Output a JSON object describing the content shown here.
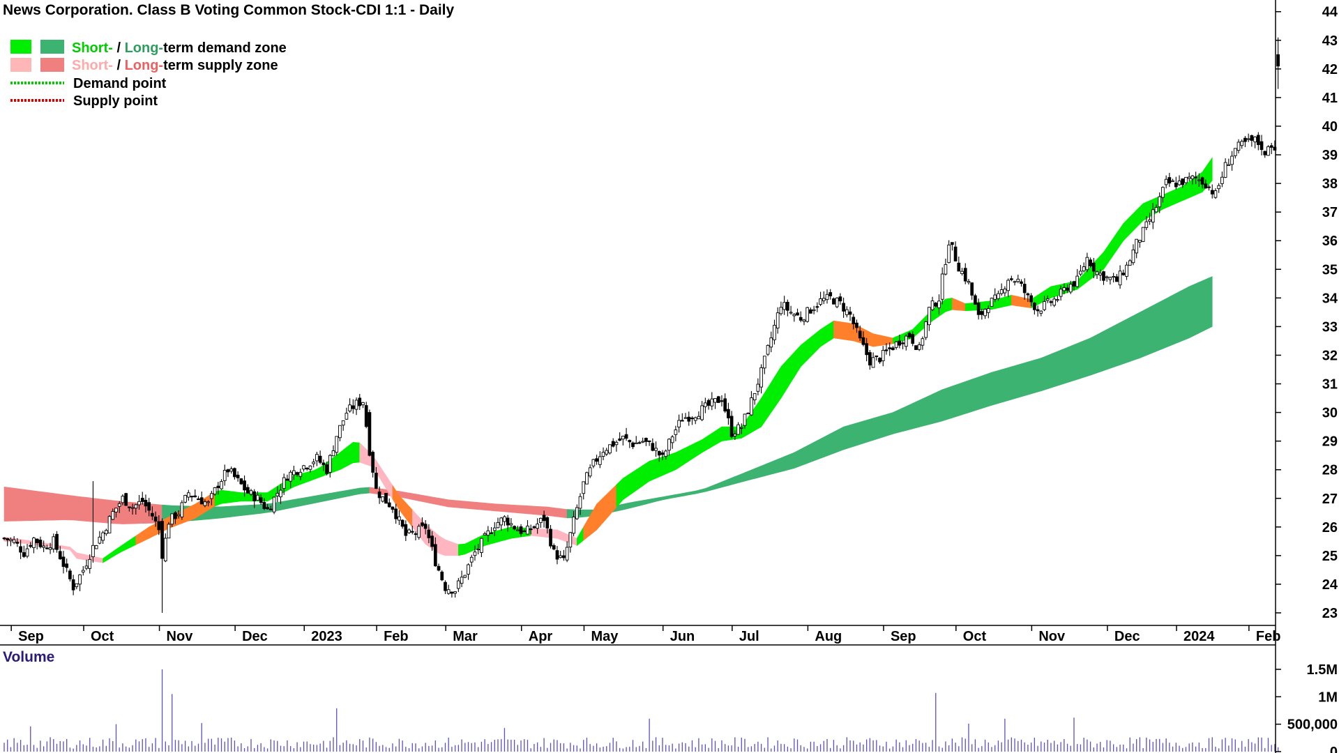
{
  "chart_data": {
    "type": "candlestick",
    "title": "News Corporation. Class B Voting Common Stock-CDI 1:1 - Daily",
    "legend": {
      "placement": "top-left",
      "items": [
        {
          "prefix": "Short-",
          "middle": " / ",
          "main": "Long-",
          "suffix": "term demand zone",
          "colors": [
            "#00ee00",
            "#3cb371"
          ]
        },
        {
          "prefix": "Short-",
          "middle": " / ",
          "main": "Long-",
          "suffix": "term supply zone",
          "colors": [
            "#ffb6b6",
            "#f08080"
          ]
        },
        {
          "label": "Demand point",
          "color": "#00cc00",
          "style": "dotted"
        },
        {
          "label": "Supply point",
          "color": "#dd0000",
          "style": "dotted"
        }
      ]
    },
    "price_axis": {
      "min": 23,
      "max": 44,
      "ticks": [
        23,
        24,
        25,
        26,
        27,
        28,
        29,
        30,
        31,
        32,
        33,
        34,
        35,
        36,
        37,
        38,
        39,
        40,
        41,
        42,
        43,
        44
      ],
      "side": "right"
    },
    "x_axis": {
      "labels": [
        "Sep",
        "Oct",
        "Nov",
        "Dec",
        "2023",
        "Feb",
        "Mar",
        "Apr",
        "May",
        "Jun",
        "Jul",
        "Aug",
        "Sep",
        "Oct",
        "Nov",
        "Dec",
        "2024",
        "Feb"
      ],
      "num_bars": 365,
      "label_bars": [
        3,
        25,
        48,
        71,
        92,
        114,
        135,
        158,
        177,
        201,
        222,
        245,
        268,
        290,
        313,
        336,
        357,
        379
      ]
    },
    "price_keys": [
      [
        0,
        25.6
      ],
      [
        3,
        25.5
      ],
      [
        6,
        25.1
      ],
      [
        9,
        25.6
      ],
      [
        12,
        25.3
      ],
      [
        15,
        25.5
      ],
      [
        18,
        24.7
      ],
      [
        21,
        23.9
      ],
      [
        24,
        24.5
      ],
      [
        27,
        25.3
      ],
      [
        30,
        25.8
      ],
      [
        33,
        26.5
      ],
      [
        36,
        27.0
      ],
      [
        39,
        26.7
      ],
      [
        42,
        26.9
      ],
      [
        45,
        26.4
      ],
      [
        47,
        25.9
      ],
      [
        48,
        24.9
      ],
      [
        50,
        26.2
      ],
      [
        53,
        26.5
      ],
      [
        56,
        27.2
      ],
      [
        59,
        27.0
      ],
      [
        62,
        26.8
      ],
      [
        65,
        27.5
      ],
      [
        68,
        28.0
      ],
      [
        71,
        27.6
      ],
      [
        74,
        27.2
      ],
      [
        77,
        27.0
      ],
      [
        80,
        26.6
      ],
      [
        83,
        27.2
      ],
      [
        86,
        27.8
      ],
      [
        89,
        28.0
      ],
      [
        92,
        28.2
      ],
      [
        95,
        28.4
      ],
      [
        98,
        28.0
      ],
      [
        101,
        29.2
      ],
      [
        104,
        30.0
      ],
      [
        107,
        30.3
      ],
      [
        109,
        30.4
      ],
      [
        111,
        28.7
      ],
      [
        113,
        27.3
      ],
      [
        115,
        27.0
      ],
      [
        118,
        26.7
      ],
      [
        120,
        26.2
      ],
      [
        122,
        25.7
      ],
      [
        125,
        25.8
      ],
      [
        128,
        26.0
      ],
      [
        131,
        24.8
      ],
      [
        134,
        23.9
      ],
      [
        137,
        23.8
      ],
      [
        140,
        24.4
      ],
      [
        143,
        25.1
      ],
      [
        146,
        25.6
      ],
      [
        149,
        26.1
      ],
      [
        152,
        26.3
      ],
      [
        155,
        26.0
      ],
      [
        158,
        25.8
      ],
      [
        161,
        26.0
      ],
      [
        164,
        26.3
      ],
      [
        167,
        25.1
      ],
      [
        170,
        24.8
      ],
      [
        173,
        26.2
      ],
      [
        176,
        27.5
      ],
      [
        179,
        28.2
      ],
      [
        182,
        28.7
      ],
      [
        185,
        28.9
      ],
      [
        188,
        29.1
      ],
      [
        191,
        28.9
      ],
      [
        194,
        29.0
      ],
      [
        197,
        28.8
      ],
      [
        200,
        28.4
      ],
      [
        203,
        29.2
      ],
      [
        206,
        29.8
      ],
      [
        209,
        29.9
      ],
      [
        212,
        30.1
      ],
      [
        215,
        30.3
      ],
      [
        218,
        30.5
      ],
      [
        221,
        29.3
      ],
      [
        224,
        29.5
      ],
      [
        227,
        30.4
      ],
      [
        230,
        31.4
      ],
      [
        233,
        32.6
      ],
      [
        236,
        33.8
      ],
      [
        239,
        33.5
      ],
      [
        242,
        33.3
      ],
      [
        245,
        33.6
      ],
      [
        248,
        33.9
      ],
      [
        251,
        34.0
      ],
      [
        254,
        33.8
      ],
      [
        257,
        33.4
      ],
      [
        260,
        32.5
      ],
      [
        263,
        31.8
      ],
      [
        266,
        31.9
      ],
      [
        269,
        32.2
      ],
      [
        272,
        32.5
      ],
      [
        275,
        32.7
      ],
      [
        278,
        32.2
      ],
      [
        281,
        33.6
      ],
      [
        284,
        34.0
      ],
      [
        287,
        36.0
      ],
      [
        290,
        35.1
      ],
      [
        293,
        34.5
      ],
      [
        296,
        33.3
      ],
      [
        299,
        33.8
      ],
      [
        302,
        34.0
      ],
      [
        305,
        34.7
      ],
      [
        308,
        34.6
      ],
      [
        311,
        34.0
      ],
      [
        314,
        33.6
      ],
      [
        317,
        33.8
      ],
      [
        320,
        34.0
      ],
      [
        323,
        34.4
      ],
      [
        326,
        34.6
      ],
      [
        329,
        35.4
      ],
      [
        332,
        34.9
      ],
      [
        335,
        34.7
      ],
      [
        338,
        34.6
      ],
      [
        341,
        35.1
      ],
      [
        344,
        35.9
      ],
      [
        347,
        36.5
      ],
      [
        350,
        37.2
      ],
      [
        353,
        38.0
      ],
      [
        356,
        38.0
      ],
      [
        359,
        38.1
      ],
      [
        362,
        38.2
      ],
      [
        365,
        38.0
      ],
      [
        368,
        37.6
      ],
      [
        371,
        38.6
      ],
      [
        374,
        39.2
      ],
      [
        377,
        39.4
      ],
      [
        380,
        39.5
      ],
      [
        382,
        39.3
      ],
      [
        383,
        38.9
      ],
      [
        384,
        39.4
      ],
      [
        386,
        39.3
      ],
      [
        387,
        42.1
      ]
    ],
    "series": [
      {
        "band": "short_term",
        "keys": [
          [
            0,
            25.65,
            25.5
          ],
          [
            12,
            25.45,
            25.35
          ],
          [
            20,
            25.3,
            25.2
          ],
          [
            22,
            25.1,
            24.9
          ],
          [
            30,
            24.9,
            24.75
          ],
          [
            35,
            25.3,
            25.1
          ],
          [
            44,
            26.0,
            25.6
          ],
          [
            50,
            26.35,
            25.95
          ],
          [
            58,
            26.8,
            26.3
          ],
          [
            65,
            27.3,
            26.8
          ],
          [
            72,
            27.2,
            26.9
          ],
          [
            80,
            27.2,
            26.9
          ],
          [
            88,
            27.8,
            27.4
          ],
          [
            95,
            28.0,
            27.7
          ],
          [
            102,
            28.6,
            28.0
          ],
          [
            107,
            29.05,
            28.3
          ],
          [
            112,
            28.5,
            28.1
          ],
          [
            120,
            27.1,
            26.6
          ],
          [
            128,
            26.1,
            25.4
          ],
          [
            133,
            25.6,
            25.0
          ],
          [
            139,
            25.35,
            25.0
          ],
          [
            146,
            25.75,
            25.35
          ],
          [
            154,
            26.0,
            25.6
          ],
          [
            160,
            25.95,
            25.7
          ],
          [
            168,
            25.9,
            25.6
          ],
          [
            174,
            25.6,
            25.35
          ],
          [
            180,
            26.8,
            25.9
          ],
          [
            188,
            27.7,
            26.95
          ],
          [
            196,
            28.3,
            27.6
          ],
          [
            204,
            28.6,
            28.0
          ],
          [
            212,
            29.05,
            28.6
          ],
          [
            218,
            29.5,
            29.0
          ],
          [
            224,
            29.5,
            29.1
          ],
          [
            230,
            30.5,
            29.5
          ],
          [
            236,
            31.6,
            30.5
          ],
          [
            242,
            32.35,
            31.6
          ],
          [
            248,
            32.9,
            32.3
          ],
          [
            252,
            33.2,
            32.6
          ],
          [
            258,
            33.1,
            32.5
          ],
          [
            264,
            32.75,
            32.3
          ],
          [
            270,
            32.6,
            32.4
          ],
          [
            276,
            32.9,
            32.6
          ],
          [
            282,
            33.6,
            33.2
          ],
          [
            287,
            34.05,
            33.6
          ],
          [
            292,
            33.8,
            33.55
          ],
          [
            300,
            33.9,
            33.6
          ],
          [
            306,
            34.1,
            33.75
          ],
          [
            312,
            33.95,
            33.65
          ],
          [
            318,
            34.4,
            34.0
          ],
          [
            326,
            34.6,
            34.3
          ],
          [
            334,
            35.6,
            35.0
          ],
          [
            340,
            36.6,
            36.0
          ],
          [
            346,
            37.3,
            36.7
          ],
          [
            352,
            37.6,
            37.1
          ],
          [
            358,
            37.9,
            37.4
          ],
          [
            364,
            38.4,
            37.7
          ],
          [
            367,
            38.9,
            38.1
          ]
        ]
      },
      {
        "band": "long_term",
        "keys": [
          [
            0,
            27.4,
            26.2
          ],
          [
            20,
            27.1,
            26.25
          ],
          [
            35,
            26.9,
            26.1
          ],
          [
            50,
            26.75,
            26.15
          ],
          [
            65,
            26.7,
            26.3
          ],
          [
            80,
            26.8,
            26.5
          ],
          [
            95,
            27.1,
            26.85
          ],
          [
            110,
            27.4,
            27.2
          ],
          [
            120,
            27.25,
            27.05
          ],
          [
            135,
            26.95,
            26.7
          ],
          [
            150,
            26.8,
            26.55
          ],
          [
            165,
            26.7,
            26.4
          ],
          [
            172,
            26.6,
            26.3
          ],
          [
            180,
            26.6,
            26.4
          ],
          [
            190,
            26.85,
            26.65
          ],
          [
            200,
            27.05,
            26.95
          ],
          [
            212,
            27.3,
            27.2
          ],
          [
            225,
            27.9,
            27.6
          ],
          [
            240,
            28.6,
            28.05
          ],
          [
            255,
            29.5,
            28.7
          ],
          [
            270,
            30.0,
            29.25
          ],
          [
            285,
            30.8,
            29.7
          ],
          [
            300,
            31.4,
            30.25
          ],
          [
            315,
            31.9,
            30.75
          ],
          [
            330,
            32.6,
            31.3
          ],
          [
            345,
            33.5,
            31.9
          ],
          [
            360,
            34.4,
            32.6
          ],
          [
            367,
            34.75,
            33.0
          ]
        ]
      }
    ],
    "volume": {
      "label": "Volume",
      "axis_ticks": [
        "1.5M",
        "1M",
        "500,000",
        "0"
      ],
      "axis_values": [
        1500000,
        1000000,
        500000,
        0
      ],
      "spikes": [
        [
          8,
          460000
        ],
        [
          34,
          500000
        ],
        [
          48,
          1500000
        ],
        [
          51,
          1050000
        ],
        [
          60,
          520000
        ],
        [
          101,
          790000
        ],
        [
          152,
          430000
        ],
        [
          196,
          600000
        ],
        [
          283,
          1070000
        ],
        [
          293,
          510000
        ],
        [
          304,
          600000
        ],
        [
          325,
          620000
        ]
      ],
      "baseline": 160000
    }
  }
}
